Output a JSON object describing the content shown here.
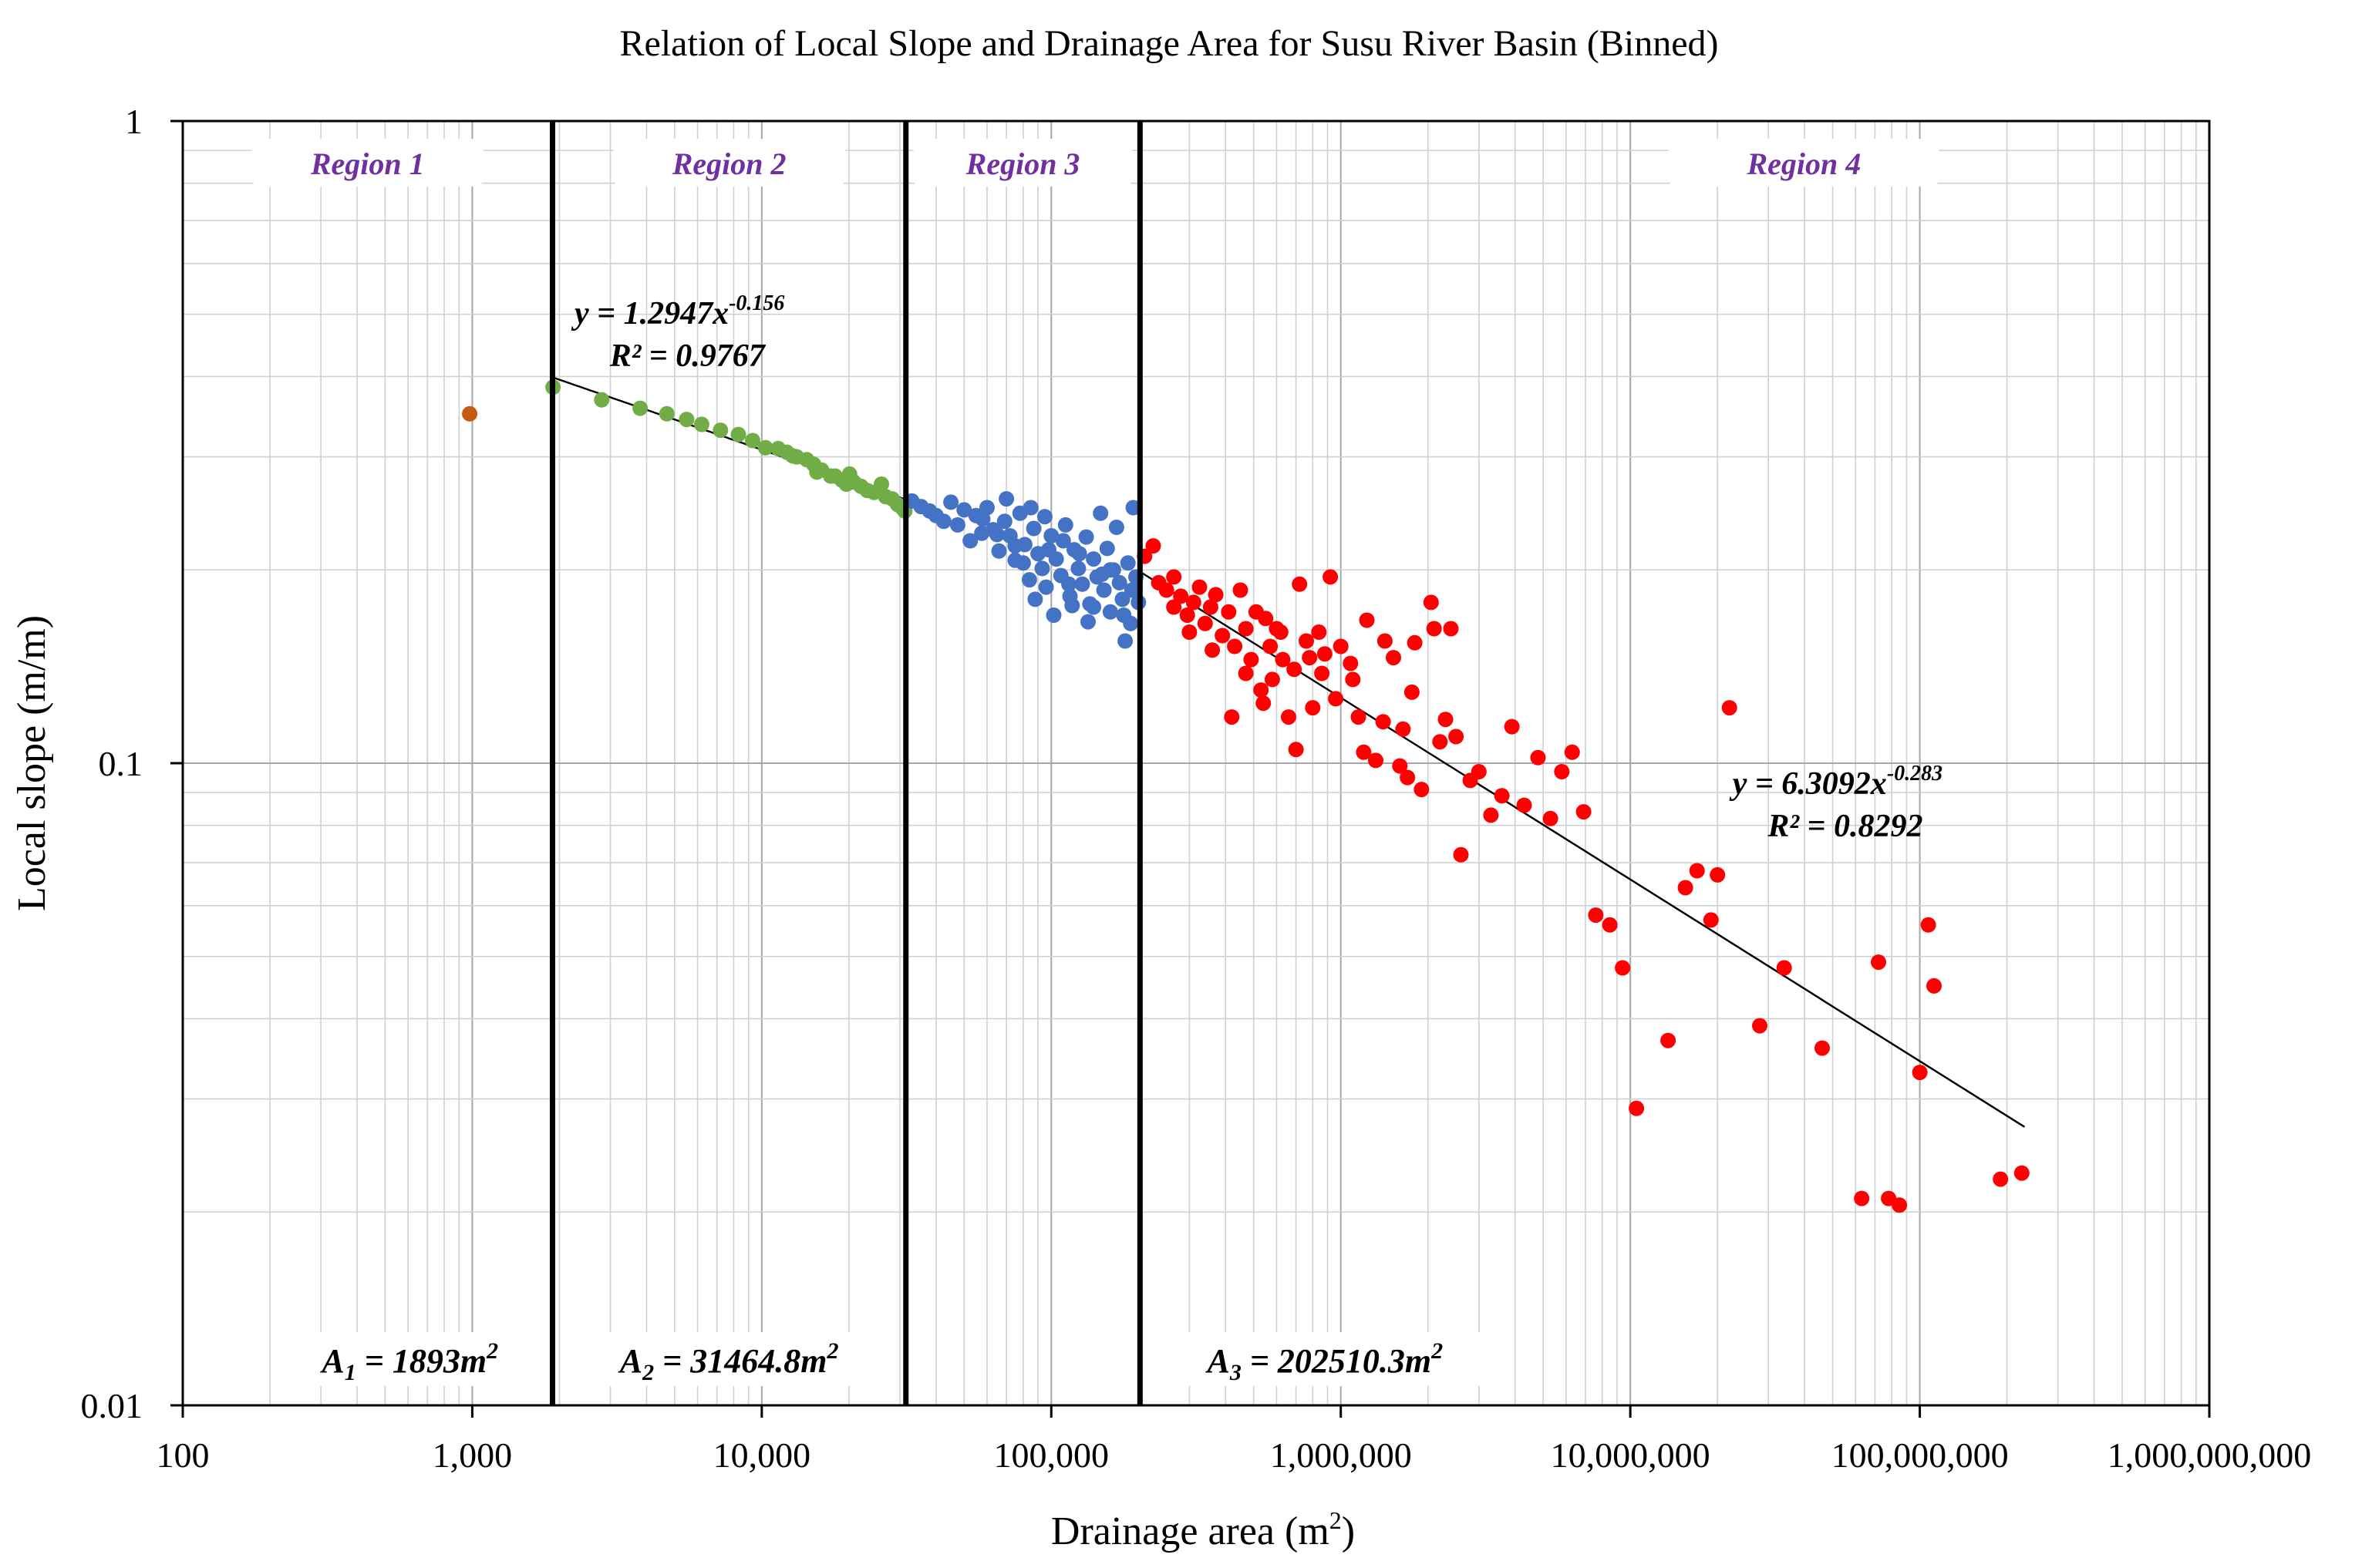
{
  "chart_data": {
    "type": "scatter",
    "title": "Relation of Local Slope and Drainage Area for Susu River Basin (Binned)",
    "xlabel": "Drainage  area (m",
    "xlabel_sup": "2",
    "xlabel_suffix": ")",
    "ylabel": "Local slope (m/m)",
    "xscale": "log",
    "yscale": "log",
    "xlim": [
      100,
      1000000000
    ],
    "ylim": [
      0.01,
      1
    ],
    "x_ticks": [
      {
        "v": 100,
        "label": "100"
      },
      {
        "v": 1000,
        "label": "1,000"
      },
      {
        "v": 10000,
        "label": "10,000"
      },
      {
        "v": 100000,
        "label": "100,000"
      },
      {
        "v": 1000000,
        "label": "1,000,000"
      },
      {
        "v": 10000000,
        "label": "10,000,000"
      },
      {
        "v": 100000000,
        "label": "100,000,000"
      },
      {
        "v": 1000000000,
        "label": "1,000,000,000"
      }
    ],
    "y_ticks": [
      {
        "v": 1,
        "label": "1"
      },
      {
        "v": 0.1,
        "label": "0.1"
      },
      {
        "v": 0.01,
        "label": "0.01"
      }
    ],
    "grid": true,
    "regions": [
      {
        "label": "Region 1",
        "from": 100,
        "to": 1893
      },
      {
        "label": "Region 2",
        "from": 1893,
        "to": 31464.8
      },
      {
        "label": "Region 3",
        "from": 31464.8,
        "to": 202510.3
      },
      {
        "label": "Region 4",
        "from": 202510.3,
        "to": 1000000000
      }
    ],
    "boundaries": [
      {
        "x": 1893,
        "label": "A",
        "sub": "1",
        "value": " = 1893m",
        "sup": "2"
      },
      {
        "x": 31464.8,
        "label": "A",
        "sub": "2",
        "value": " = 31464.8m",
        "sup": "2"
      },
      {
        "x": 202510.3,
        "label": "A",
        "sub": "3",
        "value": " = 202510.3m",
        "sup": "2"
      }
    ],
    "fits": [
      {
        "name": "Region 2 fit",
        "a": 1.2947,
        "b": -0.156,
        "x_range": [
          1893,
          31464.8
        ],
        "eq_main": "y = 1.2947x",
        "eq_exp": "-0.156",
        "r2": "R² = 0.9767"
      },
      {
        "name": "Region 4 fit",
        "a": 6.3092,
        "b": -0.283,
        "x_range": [
          202510.3,
          230000000
        ],
        "eq_main": "y = 6.3092x",
        "eq_exp": "-0.283",
        "r2": "R² = 0.8292"
      }
    ],
    "series": [
      {
        "name": "Region 1",
        "color": "#c55a11",
        "points": [
          [
            980,
            0.35
          ]
        ]
      },
      {
        "name": "Region 2",
        "color": "#70ad47",
        "points": [
          [
            1900,
            0.385
          ],
          [
            2800,
            0.368
          ],
          [
            3800,
            0.357
          ],
          [
            4700,
            0.35
          ],
          [
            5500,
            0.343
          ],
          [
            6200,
            0.337
          ],
          [
            7200,
            0.33
          ],
          [
            8300,
            0.325
          ],
          [
            9300,
            0.318
          ],
          [
            10300,
            0.31
          ],
          [
            11400,
            0.309
          ],
          [
            12200,
            0.305
          ],
          [
            13200,
            0.3
          ],
          [
            14300,
            0.297
          ],
          [
            15100,
            0.292
          ],
          [
            16100,
            0.286
          ],
          [
            17300,
            0.28
          ],
          [
            17900,
            0.28
          ],
          [
            18900,
            0.276
          ],
          [
            20100,
            0.282
          ],
          [
            20800,
            0.274
          ],
          [
            22000,
            0.27
          ],
          [
            23100,
            0.266
          ],
          [
            24400,
            0.264
          ],
          [
            25900,
            0.272
          ],
          [
            26800,
            0.26
          ],
          [
            28200,
            0.258
          ],
          [
            29400,
            0.253
          ],
          [
            30500,
            0.25
          ],
          [
            31200,
            0.247
          ],
          [
            19600,
            0.272
          ],
          [
            15500,
            0.284
          ],
          [
            25500,
            0.267
          ],
          [
            12800,
            0.301
          ]
        ]
      },
      {
        "name": "Region 3",
        "color": "#4472c4",
        "points": [
          [
            33000,
            0.256
          ],
          [
            35500,
            0.251
          ],
          [
            38000,
            0.247
          ],
          [
            40000,
            0.243
          ],
          [
            42500,
            0.238
          ],
          [
            45000,
            0.255
          ],
          [
            47500,
            0.235
          ],
          [
            50000,
            0.248
          ],
          [
            52500,
            0.222
          ],
          [
            55000,
            0.243
          ],
          [
            57500,
            0.228
          ],
          [
            60000,
            0.25
          ],
          [
            63000,
            0.231
          ],
          [
            66000,
            0.214
          ],
          [
            69000,
            0.238
          ],
          [
            72000,
            0.226
          ],
          [
            75000,
            0.207
          ],
          [
            78000,
            0.245
          ],
          [
            81000,
            0.219
          ],
          [
            84000,
            0.193
          ],
          [
            87000,
            0.232
          ],
          [
            90000,
            0.212
          ],
          [
            93000,
            0.201
          ],
          [
            96000,
            0.188
          ],
          [
            100000,
            0.226
          ],
          [
            104000,
            0.208
          ],
          [
            108000,
            0.196
          ],
          [
            112000,
            0.235
          ],
          [
            116000,
            0.182
          ],
          [
            120000,
            0.215
          ],
          [
            124000,
            0.201
          ],
          [
            128000,
            0.19
          ],
          [
            132000,
            0.225
          ],
          [
            136000,
            0.177
          ],
          [
            140000,
            0.208
          ],
          [
            144000,
            0.195
          ],
          [
            148000,
            0.245
          ],
          [
            152000,
            0.186
          ],
          [
            156000,
            0.216
          ],
          [
            160000,
            0.172
          ],
          [
            164000,
            0.2
          ],
          [
            168000,
            0.233
          ],
          [
            172000,
            0.191
          ],
          [
            176000,
            0.18
          ],
          [
            180000,
            0.155
          ],
          [
            184000,
            0.205
          ],
          [
            188000,
            0.165
          ],
          [
            192000,
            0.25
          ],
          [
            196000,
            0.195
          ],
          [
            200000,
            0.178
          ],
          [
            58000,
            0.24
          ],
          [
            70000,
            0.258
          ],
          [
            85000,
            0.25
          ],
          [
            95000,
            0.242
          ],
          [
            110000,
            0.222
          ],
          [
            125000,
            0.212
          ],
          [
            140000,
            0.175
          ],
          [
            160000,
            0.2
          ],
          [
            178000,
            0.17
          ],
          [
            190000,
            0.186
          ],
          [
            88000,
            0.18
          ],
          [
            102000,
            0.17
          ],
          [
            118000,
            0.176
          ],
          [
            134000,
            0.166
          ],
          [
            150000,
            0.197
          ],
          [
            75000,
            0.218
          ],
          [
            65000,
            0.227
          ],
          [
            80000,
            0.205
          ],
          [
            98000,
            0.215
          ],
          [
            115000,
            0.19
          ]
        ]
      },
      {
        "name": "Region 4",
        "color": "#ff0000",
        "points": [
          [
            210000,
            0.21
          ],
          [
            225000,
            0.218
          ],
          [
            235000,
            0.191
          ],
          [
            250000,
            0.186
          ],
          [
            265000,
            0.175
          ],
          [
            280000,
            0.182
          ],
          [
            295000,
            0.17
          ],
          [
            310000,
            0.178
          ],
          [
            325000,
            0.188
          ],
          [
            340000,
            0.165
          ],
          [
            355000,
            0.175
          ],
          [
            370000,
            0.183
          ],
          [
            390000,
            0.158
          ],
          [
            410000,
            0.172
          ],
          [
            430000,
            0.152
          ],
          [
            450000,
            0.186
          ],
          [
            470000,
            0.162
          ],
          [
            490000,
            0.145
          ],
          [
            510000,
            0.172
          ],
          [
            530000,
            0.13
          ],
          [
            550000,
            0.168
          ],
          [
            570000,
            0.152
          ],
          [
            600000,
            0.162
          ],
          [
            630000,
            0.145
          ],
          [
            660000,
            0.118
          ],
          [
            690000,
            0.14
          ],
          [
            720000,
            0.19
          ],
          [
            760000,
            0.155
          ],
          [
            800000,
            0.122
          ],
          [
            840000,
            0.16
          ],
          [
            880000,
            0.148
          ],
          [
            920000,
            0.195
          ],
          [
            960000,
            0.126
          ],
          [
            1000000,
            0.152
          ],
          [
            1080000,
            0.143
          ],
          [
            1150000,
            0.118
          ],
          [
            1230000,
            0.167
          ],
          [
            1320000,
            0.101
          ],
          [
            1420000,
            0.155
          ],
          [
            1520000,
            0.146
          ],
          [
            1640000,
            0.113
          ],
          [
            1760000,
            0.129
          ],
          [
            1900000,
            0.091
          ],
          [
            2050000,
            0.178
          ],
          [
            2200000,
            0.108
          ],
          [
            2400000,
            0.162
          ],
          [
            2600000,
            0.072
          ],
          [
            2800000,
            0.094
          ],
          [
            3000000,
            0.097
          ],
          [
            3300000,
            0.083
          ],
          [
            3600000,
            0.089
          ],
          [
            3900000,
            0.114
          ],
          [
            4300000,
            0.086
          ],
          [
            4800000,
            0.102
          ],
          [
            5300000,
            0.082
          ],
          [
            5800000,
            0.097
          ],
          [
            6300000,
            0.104
          ],
          [
            6900000,
            0.084
          ],
          [
            7600000,
            0.058
          ],
          [
            8500000,
            0.056
          ],
          [
            9400000,
            0.048
          ],
          [
            10500000,
            0.029
          ],
          [
            13500000,
            0.037
          ],
          [
            15500000,
            0.064
          ],
          [
            17000000,
            0.068
          ],
          [
            19000000,
            0.057
          ],
          [
            20000000,
            0.067
          ],
          [
            22000000,
            0.122
          ],
          [
            28000000,
            0.039
          ],
          [
            34000000,
            0.048
          ],
          [
            46000000,
            0.036
          ],
          [
            63000000,
            0.021
          ],
          [
            72000000,
            0.049
          ],
          [
            78000000,
            0.021
          ],
          [
            85000000,
            0.0205
          ],
          [
            100000000,
            0.033
          ],
          [
            107000000,
            0.056
          ],
          [
            112000000,
            0.045
          ],
          [
            190000000,
            0.0225
          ],
          [
            225000000,
            0.023
          ],
          [
            265000,
            0.195
          ],
          [
            300000,
            0.16
          ],
          [
            360000,
            0.15
          ],
          [
            420000,
            0.118
          ],
          [
            470000,
            0.138
          ],
          [
            540000,
            0.124
          ],
          [
            580000,
            0.135
          ],
          [
            620000,
            0.16
          ],
          [
            700000,
            0.105
          ],
          [
            780000,
            0.146
          ],
          [
            860000,
            0.138
          ],
          [
            1200000,
            0.104
          ],
          [
            1700000,
            0.095
          ],
          [
            2300000,
            0.117
          ],
          [
            2500000,
            0.11
          ],
          [
            1400000,
            0.116
          ],
          [
            1600000,
            0.099
          ],
          [
            1800000,
            0.154
          ],
          [
            2100000,
            0.162
          ],
          [
            1100000,
            0.135
          ]
        ]
      }
    ]
  }
}
